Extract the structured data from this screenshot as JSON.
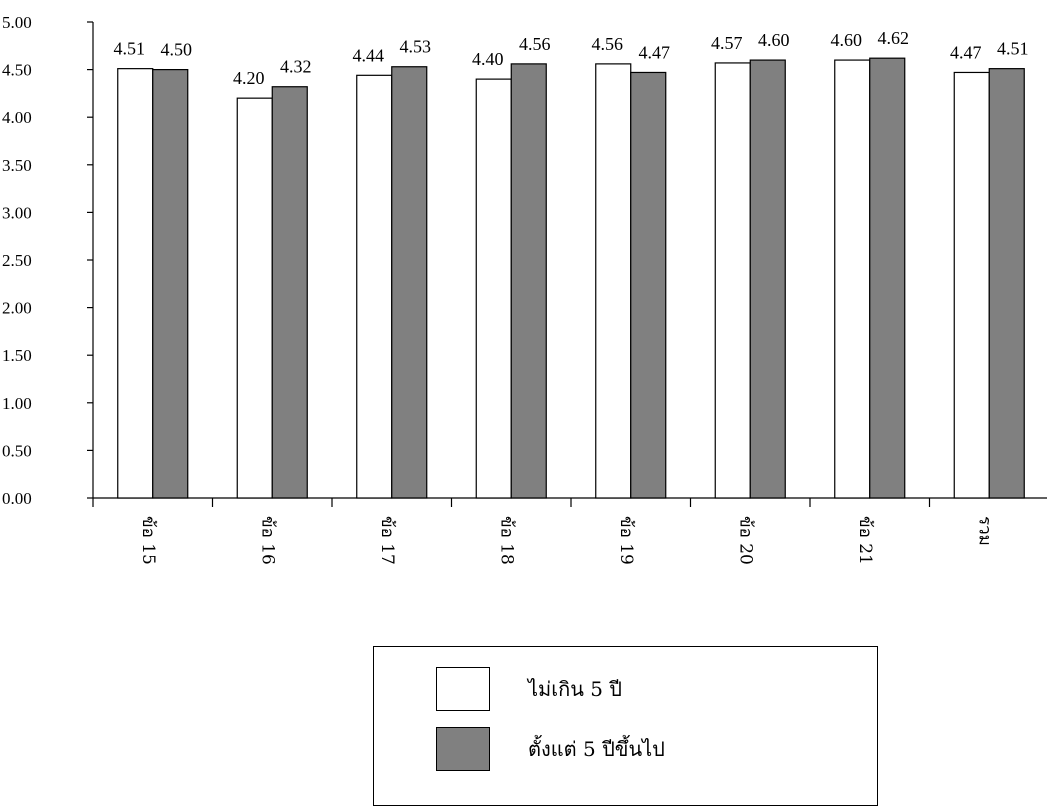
{
  "chart_data": {
    "type": "bar",
    "categories": [
      "ข้อ 15",
      "ข้อ 16",
      "ข้อ 17",
      "ข้อ 18",
      "ข้อ 19",
      "ข้อ 20",
      "ข้อ 21",
      "รวม"
    ],
    "series": [
      {
        "name": "ไม่เกิน 5 ปี",
        "color": "#ffffff",
        "values": [
          4.51,
          4.2,
          4.44,
          4.4,
          4.56,
          4.57,
          4.6,
          4.47
        ]
      },
      {
        "name": "ตั้งแต่ 5 ปีขึ้นไป",
        "color": "#808080",
        "values": [
          4.5,
          4.32,
          4.53,
          4.56,
          4.47,
          4.6,
          4.62,
          4.51
        ]
      }
    ],
    "y_ticks": [
      "0.00",
      "0.50",
      "1.00",
      "1.50",
      "2.00",
      "2.50",
      "3.00",
      "3.50",
      "4.00",
      "4.50",
      "5.00"
    ],
    "ylim": [
      0,
      5
    ],
    "grid": false,
    "legend_position": "bottom"
  }
}
